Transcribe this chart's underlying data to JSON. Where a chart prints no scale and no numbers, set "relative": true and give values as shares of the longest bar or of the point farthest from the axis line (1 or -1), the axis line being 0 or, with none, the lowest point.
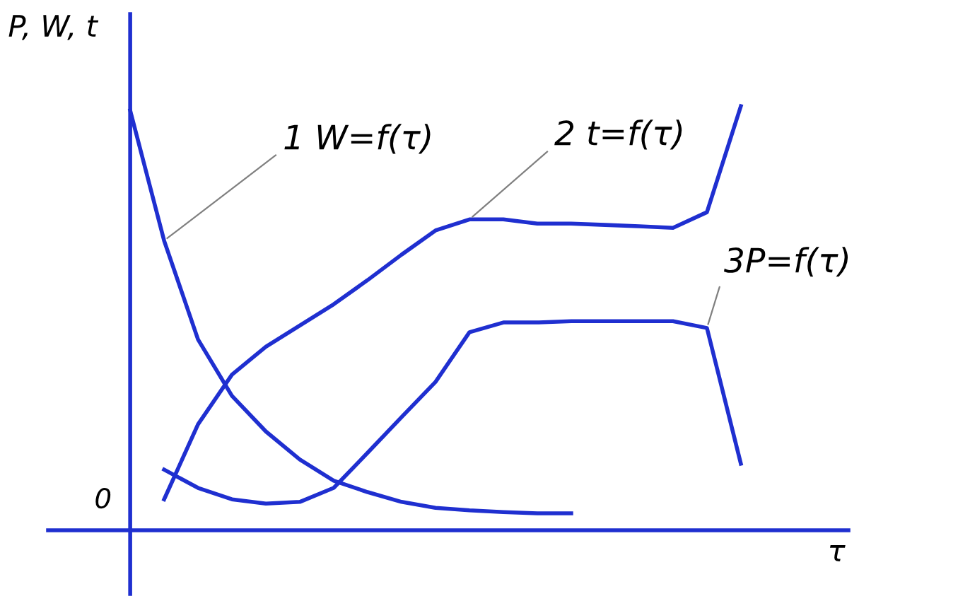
{
  "chart_data": {
    "type": "line",
    "relative": true,
    "xlabel": "τ",
    "ylabel": "P, W, t",
    "categories": [
      null,
      null,
      null,
      null,
      null,
      null,
      null,
      null,
      null,
      null,
      null,
      null,
      null,
      null,
      null,
      null,
      null,
      null,
      null
    ],
    "series": [
      {
        "color": "#1f2fd0",
        "values": [
          0.99,
          0.683,
          0.45,
          0.317,
          0.233,
          0.167,
          0.117,
          0.09,
          0.067,
          0.053,
          0.047,
          0.043,
          0.04,
          0.04,
          null,
          null,
          null,
          null,
          null
        ]
      },
      {
        "color": "#1f2fd0",
        "values": [
          null,
          0.073,
          0.25,
          0.367,
          0.433,
          0.483,
          0.533,
          0.59,
          0.65,
          0.707,
          0.733,
          0.733,
          0.723,
          0.723,
          0.72,
          0.717,
          0.713,
          0.75,
          1.0
        ]
      },
      {
        "color": "#1f2fd0",
        "values": [
          null,
          0.143,
          0.1,
          0.073,
          0.063,
          0.067,
          0.1,
          0.183,
          0.267,
          0.35,
          0.467,
          0.49,
          0.49,
          0.493,
          0.493,
          0.493,
          0.493,
          0.477,
          0.157
        ]
      }
    ],
    "annotations": [
      "1 W=f(τ)",
      "2 t=f(τ)",
      "3P=f(τ)",
      "0"
    ],
    "legend": false,
    "marker": "none",
    "line_style": "solid"
  }
}
